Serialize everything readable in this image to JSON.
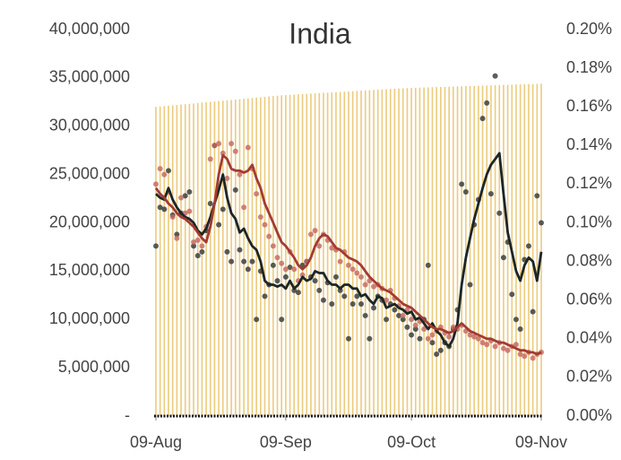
{
  "chart_data": {
    "type": "combo",
    "title": "India",
    "x": [
      0,
      1,
      2,
      3,
      4,
      5,
      6,
      7,
      8,
      9,
      10,
      11,
      12,
      13,
      14,
      15,
      16,
      17,
      18,
      19,
      20,
      21,
      22,
      23,
      24,
      25,
      26,
      27,
      28,
      29,
      30,
      31,
      32,
      33,
      34,
      35,
      36,
      37,
      38,
      39,
      40,
      41,
      42,
      43,
      44,
      45,
      46,
      47,
      48,
      49,
      50,
      51,
      52,
      53,
      54,
      55,
      56,
      57,
      58,
      59,
      60,
      61,
      62,
      63,
      64,
      65,
      66,
      67,
      68,
      69,
      70,
      71,
      72,
      73,
      74,
      75,
      76,
      77,
      78,
      79,
      80,
      81,
      82,
      83,
      84,
      85,
      86,
      87,
      88,
      89,
      90,
      91,
      92
    ],
    "xlim": [
      0,
      92
    ],
    "xticks": [
      {
        "value": 0,
        "label": "09-Aug"
      },
      {
        "value": 31,
        "label": "09-Sep"
      },
      {
        "value": 61,
        "label": "09-Oct"
      },
      {
        "value": 92,
        "label": "09-Nov"
      }
    ],
    "ylim": [
      0,
      40000000
    ],
    "yticks": [
      {
        "value": 0,
        "label": "-"
      },
      {
        "value": 5000000,
        "label": "5,000,000"
      },
      {
        "value": 10000000,
        "label": "10,000,000"
      },
      {
        "value": 15000000,
        "label": "15,000,000"
      },
      {
        "value": 20000000,
        "label": "20,000,000"
      },
      {
        "value": 25000000,
        "label": "25,000,000"
      },
      {
        "value": 30000000,
        "label": "30,000,000"
      },
      {
        "value": 35000000,
        "label": "35,000,000"
      },
      {
        "value": 40000000,
        "label": "40,000,000"
      }
    ],
    "y2lim": [
      0,
      0.2
    ],
    "y2ticks": [
      {
        "value": 0,
        "label": "0.00%"
      },
      {
        "value": 0.02,
        "label": "0.02%"
      },
      {
        "value": 0.04,
        "label": "0.04%"
      },
      {
        "value": 0.06,
        "label": "0.06%"
      },
      {
        "value": 0.08,
        "label": "0.08%"
      },
      {
        "value": 0.1,
        "label": "0.10%"
      },
      {
        "value": 0.12,
        "label": "0.12%"
      },
      {
        "value": 0.14,
        "label": "0.14%"
      },
      {
        "value": 0.16,
        "label": "0.16%"
      },
      {
        "value": 0.18,
        "label": "0.18%"
      },
      {
        "value": 0.2,
        "label": "0.20%"
      }
    ],
    "series": [
      {
        "type": "bar",
        "color": "#eccb7e",
        "axis": "y",
        "values": [
          32000000,
          32040000,
          32080000,
          32120000,
          32160000,
          32200000,
          32240000,
          32280000,
          32320000,
          32360000,
          32400000,
          32440000,
          32480000,
          32520000,
          32560000,
          32600000,
          32640000,
          32680000,
          32720000,
          32760000,
          32800000,
          32840000,
          32880000,
          32920000,
          32960000,
          33000000,
          33040000,
          33080000,
          33120000,
          33160000,
          33200000,
          33225000,
          33250000,
          33275000,
          33300000,
          33325000,
          33350000,
          33375000,
          33400000,
          33425000,
          33450000,
          33475000,
          33500000,
          33525000,
          33550000,
          33575000,
          33600000,
          33625000,
          33650000,
          33675000,
          33700000,
          33725000,
          33750000,
          33775000,
          33800000,
          33825000,
          33850000,
          33875000,
          33900000,
          33925000,
          33950000,
          33964000,
          33978000,
          33992000,
          34006000,
          34020000,
          34034000,
          34048000,
          34062000,
          34076000,
          34090000,
          34104000,
          34118000,
          34132000,
          34146000,
          34160000,
          34174000,
          34188000,
          34202000,
          34216000,
          34230000,
          34244000,
          34258000,
          34272000,
          34286000,
          34300000,
          34314000,
          34328000,
          34342000,
          34356000,
          34370000,
          34384000,
          34398000
        ]
      },
      {
        "type": "scatter",
        "color": "#2f3636",
        "axis": "y2",
        "values": [
          0.088,
          0.108,
          0.107,
          0.127,
          0.104,
          0.094,
          0.105,
          0.114,
          0.116,
          0.088,
          0.083,
          0.085,
          0.096,
          0.11,
          0.14,
          0.099,
          0.107,
          0.085,
          0.08,
          0.117,
          0.086,
          0.08,
          0.076,
          0.08,
          0.05,
          0.075,
          0.062,
          0.068,
          0.078,
          0.07,
          0.05,
          0.072,
          0.077,
          0.065,
          0.064,
          0.078,
          0.08,
          0.072,
          0.07,
          0.065,
          0.06,
          0.069,
          0.058,
          0.072,
          0.065,
          0.062,
          0.04,
          0.058,
          0.062,
          0.058,
          0.052,
          0.04,
          0.056,
          0.062,
          0.06,
          0.05,
          0.058,
          0.055,
          0.052,
          0.05,
          0.046,
          0.042,
          0.045,
          0.04,
          0.05,
          0.078,
          0.038,
          0.032,
          0.034,
          0.038,
          0.036,
          0.045,
          0.055,
          0.12,
          0.116,
          0.068,
          0.099,
          0.112,
          0.154,
          0.162,
          0.115,
          0.176,
          0.105,
          0.082,
          0.09,
          0.063,
          0.05,
          0.045,
          0.081,
          0.088,
          0.054,
          0.114,
          0.1
        ]
      },
      {
        "type": "scatter",
        "color": "#c4665c",
        "axis": "y2",
        "values": [
          0.12,
          0.128,
          0.125,
          0.116,
          0.103,
          0.092,
          0.113,
          0.105,
          0.106,
          0.09,
          0.091,
          0.088,
          0.098,
          0.133,
          0.14,
          0.141,
          0.136,
          0.123,
          0.141,
          0.137,
          0.125,
          0.108,
          0.139,
          0.128,
          0.115,
          0.103,
          0.099,
          0.093,
          0.088,
          0.082,
          0.079,
          0.076,
          0.085,
          0.076,
          0.07,
          0.073,
          0.08,
          0.094,
          0.096,
          0.088,
          0.094,
          0.091,
          0.087,
          0.086,
          0.08,
          0.085,
          0.078,
          0.076,
          0.074,
          0.072,
          0.068,
          0.07,
          0.067,
          0.068,
          0.066,
          0.06,
          0.065,
          0.061,
          0.057,
          0.052,
          0.055,
          0.05,
          0.047,
          0.049,
          0.045,
          0.04,
          0.042,
          0.044,
          0.046,
          0.043,
          0.041,
          0.046,
          0.045,
          0.047,
          0.044,
          0.042,
          0.041,
          0.04,
          0.038,
          0.037,
          0.039,
          0.036,
          0.038,
          0.035,
          0.034,
          0.036,
          0.037,
          0.032,
          0.031,
          0.033,
          0.03,
          0.032,
          0.033
        ]
      },
      {
        "type": "line",
        "color": "#1c2626",
        "axis": "y2",
        "values": [
          0.115,
          0.113,
          0.112,
          0.118,
          0.112,
          0.108,
          0.105,
          0.103,
          0.102,
          0.1,
          0.096,
          0.094,
          0.097,
          0.103,
          0.11,
          0.117,
          0.125,
          0.113,
          0.105,
          0.102,
          0.095,
          0.097,
          0.092,
          0.088,
          0.086,
          0.08,
          0.07,
          0.068,
          0.068,
          0.067,
          0.068,
          0.066,
          0.07,
          0.066,
          0.068,
          0.072,
          0.07,
          0.071,
          0.075,
          0.074,
          0.074,
          0.07,
          0.068,
          0.068,
          0.066,
          0.068,
          0.068,
          0.066,
          0.066,
          0.062,
          0.063,
          0.06,
          0.058,
          0.062,
          0.061,
          0.056,
          0.057,
          0.058,
          0.056,
          0.055,
          0.053,
          0.054,
          0.05,
          0.051,
          0.048,
          0.045,
          0.048,
          0.044,
          0.042,
          0.038,
          0.036,
          0.04,
          0.048,
          0.068,
          0.082,
          0.092,
          0.102,
          0.11,
          0.118,
          0.125,
          0.13,
          0.133,
          0.136,
          0.115,
          0.095,
          0.085,
          0.075,
          0.07,
          0.078,
          0.082,
          0.08,
          0.07,
          0.085
        ]
      },
      {
        "type": "line",
        "color": "#a33b32",
        "axis": "y2",
        "values": [
          0.118,
          0.115,
          0.113,
          0.11,
          0.108,
          0.105,
          0.103,
          0.102,
          0.1,
          0.098,
          0.095,
          0.092,
          0.09,
          0.098,
          0.11,
          0.125,
          0.135,
          0.133,
          0.128,
          0.127,
          0.127,
          0.126,
          0.127,
          0.13,
          0.123,
          0.118,
          0.11,
          0.105,
          0.1,
          0.095,
          0.09,
          0.088,
          0.085,
          0.082,
          0.078,
          0.076,
          0.078,
          0.082,
          0.088,
          0.092,
          0.094,
          0.093,
          0.09,
          0.087,
          0.086,
          0.084,
          0.082,
          0.081,
          0.08,
          0.078,
          0.075,
          0.072,
          0.07,
          0.068,
          0.066,
          0.065,
          0.064,
          0.062,
          0.06,
          0.058,
          0.057,
          0.056,
          0.054,
          0.052,
          0.05,
          0.048,
          0.046,
          0.045,
          0.045,
          0.044,
          0.043,
          0.044,
          0.046,
          0.048,
          0.046,
          0.044,
          0.043,
          0.042,
          0.041,
          0.04,
          0.04,
          0.039,
          0.038,
          0.038,
          0.037,
          0.036,
          0.035,
          0.034,
          0.034,
          0.033,
          0.033,
          0.032,
          0.033
        ]
      }
    ]
  }
}
